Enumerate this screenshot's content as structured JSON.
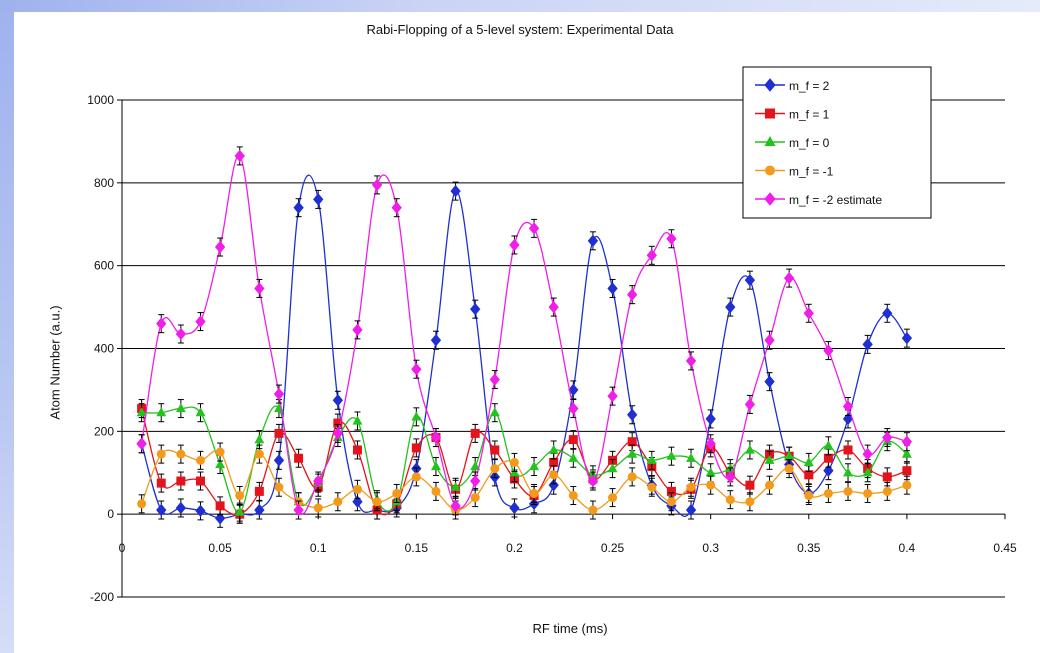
{
  "chart_data": {
    "type": "line",
    "title": "Rabi-Flopping of a 5-level system: Experimental Data",
    "xlabel": "RF time (ms)",
    "ylabel": "Atom Number (a.u.)",
    "xlim": [
      0,
      0.45
    ],
    "ylim": [
      -200,
      1000
    ],
    "x_ticks": [
      "0",
      "0.05",
      "0.1",
      "0.15",
      "0.2",
      "0.25",
      "0.3",
      "0.35",
      "0.4",
      "0.45"
    ],
    "y_ticks": [
      "-200",
      "0",
      "200",
      "400",
      "600",
      "800",
      "1000"
    ],
    "grid": "horizontal",
    "legend_position": "top-right",
    "x": [
      0.01,
      0.02,
      0.03,
      0.04,
      0.05,
      0.06,
      0.07,
      0.08,
      0.09,
      0.1,
      0.11,
      0.12,
      0.13,
      0.14,
      0.15,
      0.16,
      0.17,
      0.18,
      0.19,
      0.2,
      0.21,
      0.22,
      0.23,
      0.24,
      0.25,
      0.26,
      0.27,
      0.28,
      0.29,
      0.3,
      0.31,
      0.32,
      0.33,
      0.34,
      0.35,
      0.36,
      0.37,
      0.38,
      0.39,
      0.4
    ],
    "series": [
      {
        "name": "m_f = 2",
        "color": "#1f2fd1",
        "marker": "diamond",
        "values": [
          170,
          10,
          15,
          8,
          -10,
          0,
          10,
          130,
          740,
          760,
          275,
          30,
          10,
          15,
          110,
          420,
          780,
          495,
          90,
          15,
          25,
          70,
          300,
          660,
          545,
          240,
          70,
          20,
          10,
          230,
          500,
          565,
          320,
          120,
          50,
          105,
          230,
          410,
          485,
          425
        ]
      },
      {
        "name": "m_f  = 1",
        "color": "#e3141b",
        "marker": "square",
        "values": [
          255,
          75,
          80,
          80,
          20,
          0,
          55,
          195,
          135,
          65,
          220,
          155,
          10,
          25,
          160,
          185,
          60,
          195,
          155,
          85,
          45,
          125,
          180,
          85,
          130,
          175,
          115,
          55,
          60,
          160,
          100,
          70,
          145,
          140,
          95,
          135,
          155,
          110,
          90,
          105
        ]
      },
      {
        "name": "m_f  = 0",
        "color": "#22c31c",
        "marker": "triangle",
        "values": [
          245,
          245,
          255,
          245,
          120,
          5,
          180,
          255,
          30,
          75,
          185,
          225,
          35,
          30,
          235,
          115,
          65,
          115,
          245,
          100,
          115,
          155,
          135,
          95,
          110,
          145,
          130,
          140,
          135,
          100,
          110,
          155,
          130,
          140,
          125,
          165,
          100,
          100,
          175,
          145
        ]
      },
      {
        "name": "m_f  = -1",
        "color": "#f39a1a",
        "marker": "circle",
        "values": [
          25,
          145,
          145,
          130,
          150,
          45,
          145,
          65,
          30,
          15,
          30,
          60,
          30,
          50,
          90,
          55,
          10,
          40,
          110,
          125,
          50,
          95,
          45,
          10,
          40,
          90,
          65,
          30,
          65,
          70,
          35,
          30,
          70,
          110,
          45,
          50,
          55,
          50,
          55,
          70
        ]
      },
      {
        "name": "m_f  = -2 estimate",
        "color": "#f01ee6",
        "marker": "diamond",
        "values": [
          170,
          460,
          435,
          465,
          645,
          865,
          545,
          290,
          10,
          80,
          195,
          445,
          795,
          740,
          350,
          185,
          20,
          80,
          325,
          650,
          690,
          500,
          255,
          80,
          285,
          530,
          625,
          665,
          370,
          170,
          90,
          265,
          420,
          570,
          485,
          395,
          260,
          145,
          185,
          175
        ]
      }
    ]
  }
}
